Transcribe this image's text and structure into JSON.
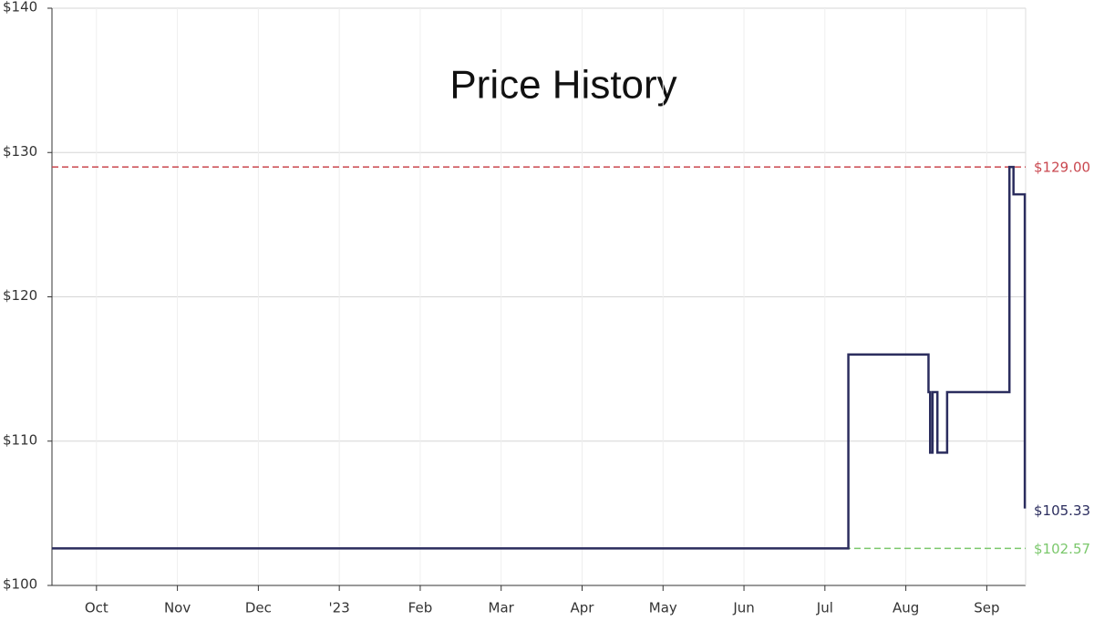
{
  "chart_data": {
    "type": "step-line",
    "title": "Price History",
    "xlim": [
      -0.55,
      11.48
    ],
    "xticks": [
      {
        "value": 0,
        "label": "Oct"
      },
      {
        "value": 1,
        "label": "Nov"
      },
      {
        "value": 2,
        "label": "Dec"
      },
      {
        "value": 3,
        "label": "'23"
      },
      {
        "value": 4,
        "label": "Feb"
      },
      {
        "value": 5,
        "label": "Mar"
      },
      {
        "value": 6,
        "label": "Apr"
      },
      {
        "value": 7,
        "label": "May"
      },
      {
        "value": 8,
        "label": "Jun"
      },
      {
        "value": 9,
        "label": "Jul"
      },
      {
        "value": 10,
        "label": "Aug"
      },
      {
        "value": 11,
        "label": "Sep"
      }
    ],
    "ylim": [
      100,
      140
    ],
    "yticks": [
      {
        "value": 100,
        "label": "$100"
      },
      {
        "value": 110,
        "label": "$110"
      },
      {
        "value": 120,
        "label": "$120"
      },
      {
        "value": 130,
        "label": "$130"
      },
      {
        "value": 140,
        "label": "$140"
      }
    ],
    "grid": true,
    "series": [
      {
        "color": "#2b2d5e",
        "x": [
          -0.55,
          9.29,
          10.28,
          10.3,
          10.33,
          10.39,
          10.51,
          11.28,
          11.33,
          11.47
        ],
        "values": [
          102.57,
          116,
          113.4,
          109.2,
          113.4,
          109.2,
          113.4,
          129,
          127.1,
          105.33
        ],
        "end_label": "$105.33"
      }
    ],
    "reference_lines": [
      {
        "value": 129,
        "label": "$129.00",
        "color": "#c9474f"
      },
      {
        "value": 102.57,
        "label": "$102.57",
        "color": "#7bc86c"
      }
    ]
  }
}
